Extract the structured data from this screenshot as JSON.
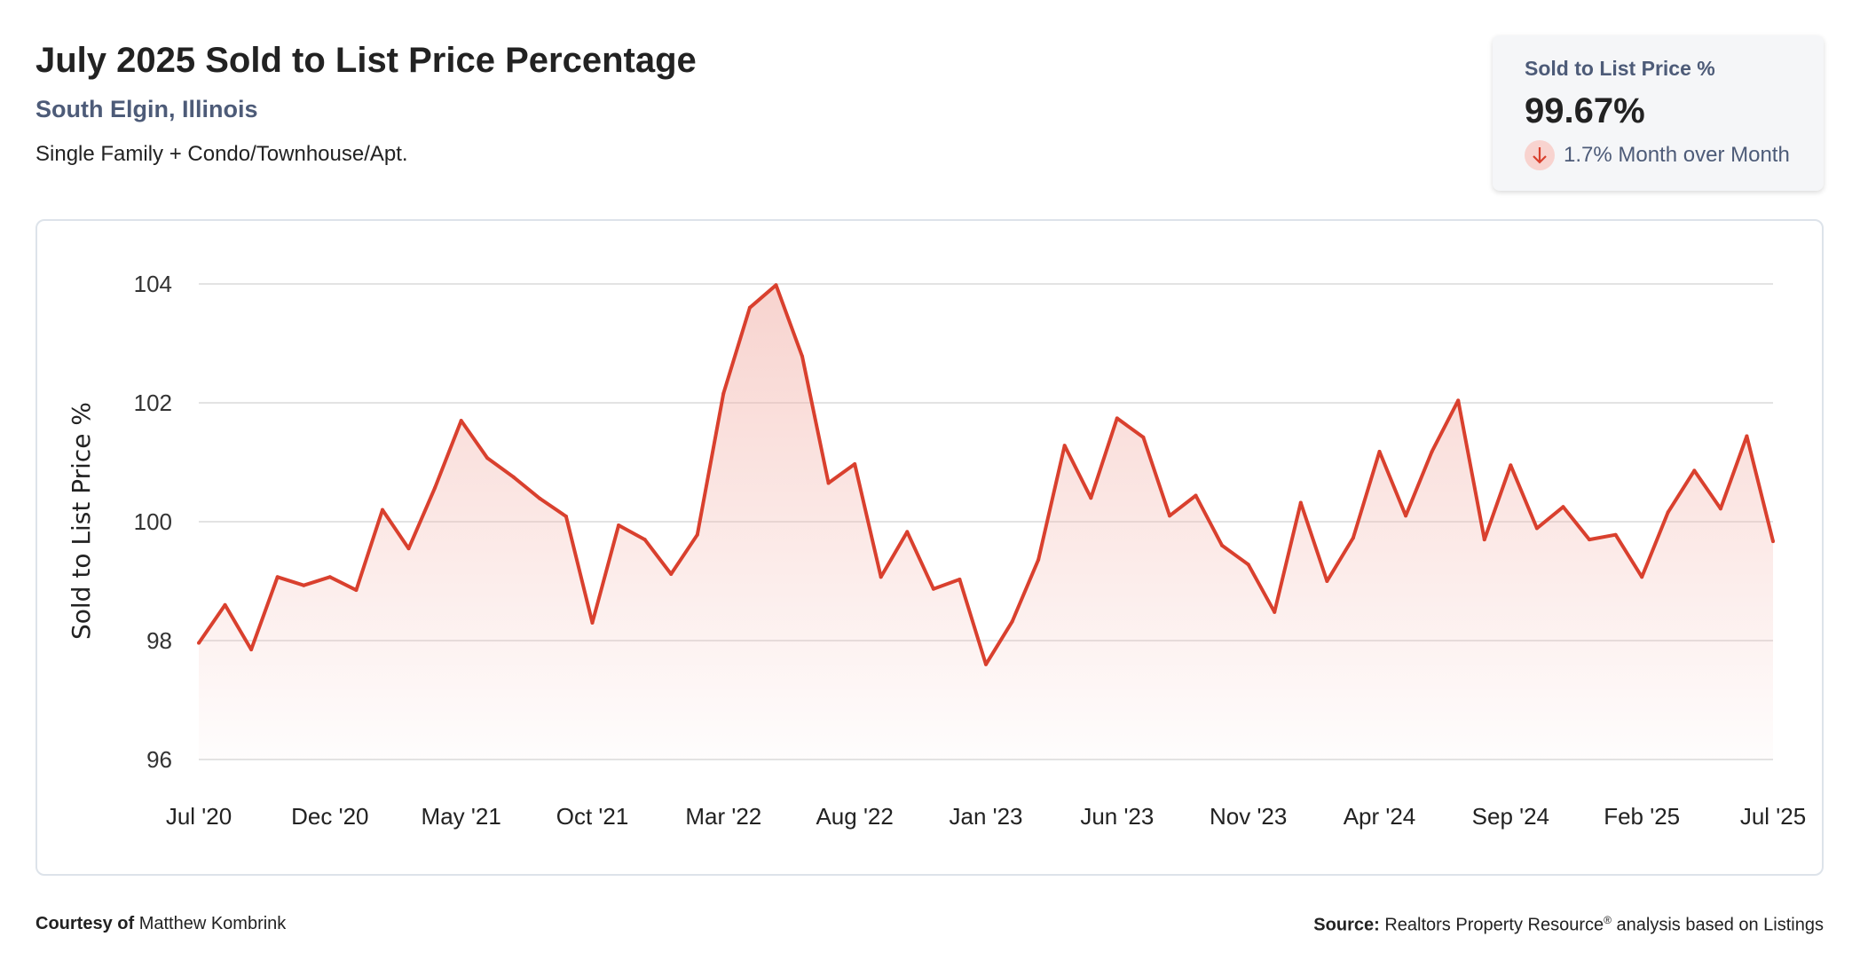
{
  "header": {
    "title": "July 2025 Sold to List Price Percentage",
    "location": "South Elgin, Illinois",
    "property_types": "Single Family + Condo/Townhouse/Apt."
  },
  "kpi": {
    "label": "Sold to List Price %",
    "value": "99.67%",
    "change": "1.7% Month over Month",
    "direction": "down",
    "icon": "arrow-down-icon"
  },
  "footer": {
    "courtesy_label": "Courtesy of",
    "courtesy_name": "Matthew Kombrink",
    "source_label": "Source:",
    "source_text": "Realtors Property Resource",
    "source_reg": "®",
    "source_suffix": " analysis based on Listings"
  },
  "colors": {
    "line": "#d9402e",
    "fill": "#f3b6ae",
    "grid": "#e3e3e3"
  },
  "chart_data": {
    "type": "area",
    "title": "July 2025 Sold to List Price Percentage",
    "xlabel": "",
    "ylabel": "Sold to List Price %",
    "ylim": [
      96,
      104
    ],
    "yticks": [
      96,
      98,
      100,
      102,
      104
    ],
    "grid": true,
    "xtick_labels": [
      "Jul '20",
      "Dec '20",
      "May '21",
      "Oct '21",
      "Mar '22",
      "Aug '22",
      "Jan '23",
      "Jun '23",
      "Nov '23",
      "Apr '24",
      "Sep '24",
      "Feb '25",
      "Jul '25"
    ],
    "xtick_every": 5,
    "start": "Jul 2020",
    "end": "Jul 2025",
    "values": [
      97.96,
      98.6,
      97.85,
      99.07,
      98.93,
      99.07,
      98.85,
      100.2,
      99.55,
      100.57,
      101.7,
      101.07,
      100.75,
      100.39,
      100.09,
      98.3,
      99.94,
      99.7,
      99.12,
      99.78,
      102.16,
      103.6,
      103.98,
      102.78,
      100.65,
      100.97,
      99.07,
      99.83,
      98.87,
      99.03,
      97.6,
      98.32,
      99.36,
      101.28,
      100.4,
      101.74,
      101.42,
      100.1,
      100.44,
      99.6,
      99.28,
      98.48,
      100.32,
      99.0,
      99.73,
      101.18,
      100.1,
      101.18,
      102.04,
      99.7,
      100.95,
      99.89,
      100.25,
      99.7,
      99.78,
      99.07,
      100.16,
      100.86,
      100.22,
      101.44,
      99.67
    ]
  }
}
